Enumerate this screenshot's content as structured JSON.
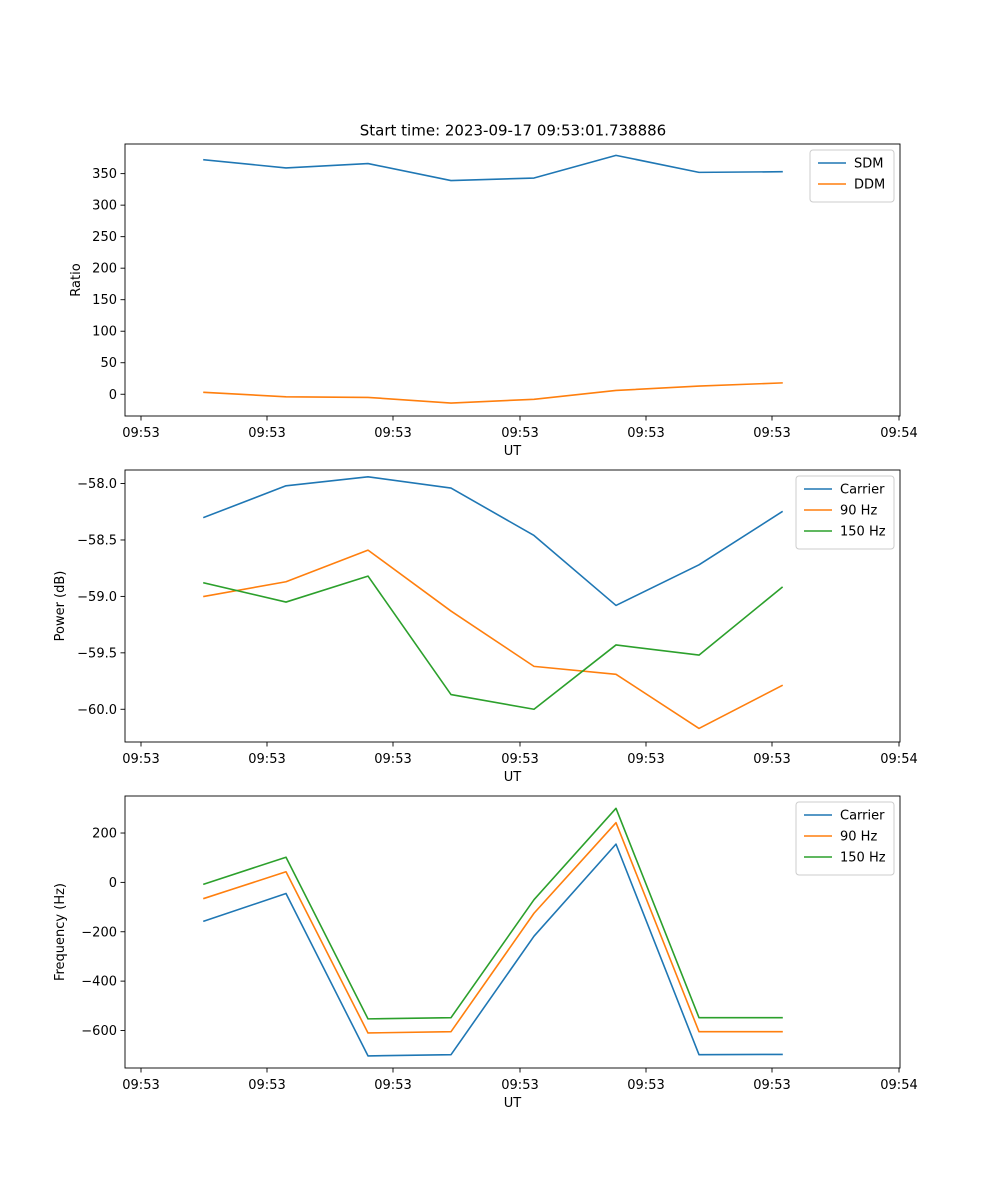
{
  "figure": {
    "title": "Start time: 2023-09-17 09:53:01.738886"
  },
  "colors": {
    "blue": "#1f77b4",
    "orange": "#ff7f0e",
    "green": "#2ca02c"
  },
  "chart_data": [
    {
      "type": "line",
      "xlabel": "UT",
      "ylabel": "Ratio",
      "x_tick_labels": [
        "09:53",
        "09:53",
        "09:53",
        "09:53",
        "09:53",
        "09:53",
        "09:54"
      ],
      "y_ticks": [
        0,
        50,
        100,
        150,
        200,
        250,
        300,
        350
      ],
      "y_tick_labels": [
        "0",
        "50",
        "100",
        "150",
        "200",
        "250",
        "300",
        "350"
      ],
      "ylim": [
        -34.5,
        397
      ],
      "legend_position": "top-right",
      "series": [
        {
          "name": "SDM",
          "color": "#1f77b4",
          "values": [
            372,
            359,
            366,
            339,
            343,
            379,
            352,
            353
          ]
        },
        {
          "name": "DDM",
          "color": "#ff7f0e",
          "values": [
            3,
            -4,
            -5,
            -14,
            -8,
            6,
            13,
            18
          ]
        }
      ]
    },
    {
      "type": "line",
      "xlabel": "UT",
      "ylabel": "Power (dB)",
      "x_tick_labels": [
        "09:53",
        "09:53",
        "09:53",
        "09:53",
        "09:53",
        "09:53",
        "09:54"
      ],
      "y_ticks": [
        -60.0,
        -59.5,
        -59.0,
        -58.5,
        -58.0
      ],
      "y_tick_labels": [
        "−60.0",
        "−59.5",
        "−59.0",
        "−58.5",
        "−58.0"
      ],
      "ylim": [
        -60.29,
        -57.88
      ],
      "legend_position": "top-right",
      "series": [
        {
          "name": "Carrier",
          "color": "#1f77b4",
          "values": [
            -58.3,
            -58.02,
            -57.94,
            -58.04,
            -58.46,
            -59.08,
            -58.72,
            -58.25
          ]
        },
        {
          "name": "90 Hz",
          "color": "#ff7f0e",
          "values": [
            -59.0,
            -58.87,
            -58.59,
            -59.13,
            -59.62,
            -59.69,
            -60.17,
            -59.79
          ]
        },
        {
          "name": "150 Hz",
          "color": "#2ca02c",
          "values": [
            -58.88,
            -59.05,
            -58.82,
            -59.87,
            -60.0,
            -59.43,
            -59.52,
            -58.92
          ]
        }
      ]
    },
    {
      "type": "line",
      "xlabel": "UT",
      "ylabel": "Frequency (Hz)",
      "x_tick_labels": [
        "09:53",
        "09:53",
        "09:53",
        "09:53",
        "09:53",
        "09:53",
        "09:54"
      ],
      "y_ticks": [
        -600,
        -400,
        -200,
        0,
        200
      ],
      "y_tick_labels": [
        "−600",
        "−400",
        "−200",
        "0",
        "200"
      ],
      "ylim": [
        -752,
        350
      ],
      "legend_position": "top-right",
      "series": [
        {
          "name": "Carrier",
          "color": "#1f77b4",
          "values": [
            -157,
            -45,
            -703,
            -698,
            -218,
            155,
            -698,
            -697
          ]
        },
        {
          "name": "90 Hz",
          "color": "#ff7f0e",
          "values": [
            -65,
            43,
            -610,
            -605,
            -125,
            242,
            -605,
            -605
          ]
        },
        {
          "name": "150 Hz",
          "color": "#2ca02c",
          "values": [
            -7,
            102,
            -553,
            -548,
            -70,
            300,
            -548,
            -548
          ]
        }
      ]
    }
  ]
}
